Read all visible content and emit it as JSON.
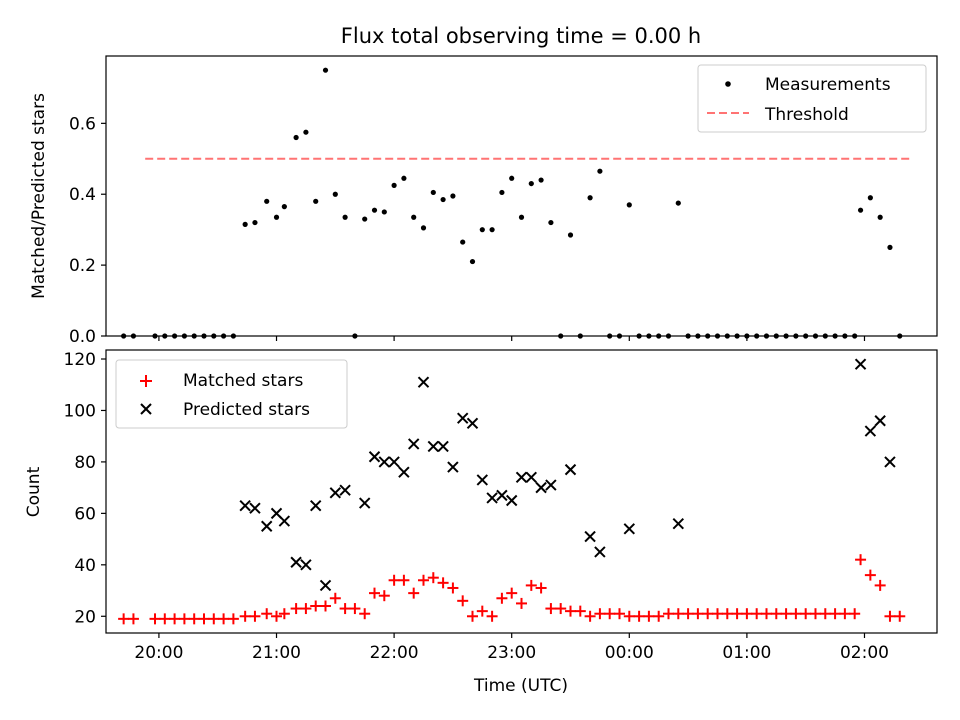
{
  "figure_title": "Flux total observing time = 0.00 h",
  "chart_data": [
    {
      "type": "scatter",
      "title": "Flux total observing time = 0.00 h",
      "ylabel": "Matched/Predicted stars",
      "xlabel": "",
      "xlim": [
        "19:33",
        "02:37"
      ],
      "ylim": [
        0,
        0.79
      ],
      "x_ticks": [
        "20:00",
        "21:00",
        "22:00",
        "23:00",
        "00:00",
        "01:00",
        "02:00"
      ],
      "y_ticks": [
        "0.0",
        "0.2",
        "0.4",
        "0.6"
      ],
      "grid": false,
      "legend_position": "top-right",
      "series": [
        {
          "name": "Measurements",
          "marker": "dot",
          "color": "#000000",
          "points": [
            [
              "19:42",
              0
            ],
            [
              "19:47",
              0
            ],
            [
              "19:58",
              0
            ],
            [
              "20:03",
              0
            ],
            [
              "20:08",
              0
            ],
            [
              "20:13",
              0
            ],
            [
              "20:18",
              0
            ],
            [
              "20:23",
              0
            ],
            [
              "20:28",
              0
            ],
            [
              "20:33",
              0
            ],
            [
              "20:38",
              0
            ],
            [
              "20:44",
              0.315
            ],
            [
              "20:49",
              0.32
            ],
            [
              "20:55",
              0.38
            ],
            [
              "21:00",
              0.335
            ],
            [
              "21:04",
              0.365
            ],
            [
              "21:10",
              0.56
            ],
            [
              "21:15",
              0.575
            ],
            [
              "21:20",
              0.38
            ],
            [
              "21:25",
              0.75
            ],
            [
              "21:30",
              0.4
            ],
            [
              "21:35",
              0.335
            ],
            [
              "21:40",
              0
            ],
            [
              "21:45",
              0.33
            ],
            [
              "21:50",
              0.355
            ],
            [
              "21:55",
              0.35
            ],
            [
              "22:00",
              0.425
            ],
            [
              "22:05",
              0.445
            ],
            [
              "22:10",
              0.335
            ],
            [
              "22:15",
              0.305
            ],
            [
              "22:20",
              0.405
            ],
            [
              "22:25",
              0.385
            ],
            [
              "22:30",
              0.395
            ],
            [
              "22:35",
              0.265
            ],
            [
              "22:40",
              0.21
            ],
            [
              "22:45",
              0.3
            ],
            [
              "22:50",
              0.3
            ],
            [
              "22:55",
              0.405
            ],
            [
              "23:00",
              0.445
            ],
            [
              "23:05",
              0.335
            ],
            [
              "23:10",
              0.43
            ],
            [
              "23:15",
              0.44
            ],
            [
              "23:20",
              0.32
            ],
            [
              "23:25",
              0
            ],
            [
              "23:30",
              0.285
            ],
            [
              "23:35",
              0
            ],
            [
              "23:40",
              0.39
            ],
            [
              "23:45",
              0.465
            ],
            [
              "23:50",
              0
            ],
            [
              "23:55",
              0
            ],
            [
              "00:00",
              0.37
            ],
            [
              "00:05",
              0
            ],
            [
              "00:10",
              0
            ],
            [
              "00:15",
              0
            ],
            [
              "00:20",
              0
            ],
            [
              "00:25",
              0.375
            ],
            [
              "00:30",
              0
            ],
            [
              "00:35",
              0
            ],
            [
              "00:40",
              0
            ],
            [
              "00:45",
              0
            ],
            [
              "00:50",
              0
            ],
            [
              "00:55",
              0
            ],
            [
              "01:00",
              0
            ],
            [
              "01:05",
              0
            ],
            [
              "01:10",
              0
            ],
            [
              "01:15",
              0
            ],
            [
              "01:20",
              0
            ],
            [
              "01:25",
              0
            ],
            [
              "01:30",
              0
            ],
            [
              "01:35",
              0
            ],
            [
              "01:40",
              0
            ],
            [
              "01:45",
              0
            ],
            [
              "01:50",
              0
            ],
            [
              "01:55",
              0
            ],
            [
              "01:58",
              0.355
            ],
            [
              "02:03",
              0.39
            ],
            [
              "02:08",
              0.335
            ],
            [
              "02:13",
              0.25
            ],
            [
              "02:18",
              0
            ]
          ]
        },
        {
          "name": "Threshold",
          "line_style": "dashed",
          "color": "#ff7373",
          "points": [
            [
              "19:53",
              0.5
            ],
            [
              "02:23",
              0.5
            ]
          ]
        }
      ]
    },
    {
      "type": "scatter",
      "title": "",
      "ylabel": "Count",
      "xlabel": "Time (UTC)",
      "xlim": [
        "19:33",
        "02:37"
      ],
      "ylim": [
        13.5,
        123.5
      ],
      "x_ticks": [
        "20:00",
        "21:00",
        "22:00",
        "23:00",
        "00:00",
        "01:00",
        "02:00"
      ],
      "y_ticks": [
        "20",
        "40",
        "60",
        "80",
        "100",
        "120"
      ],
      "grid": false,
      "legend_position": "top-left",
      "series": [
        {
          "name": "Matched stars",
          "marker": "plus",
          "color": "#ff0000",
          "points": [
            [
              "19:42",
              19
            ],
            [
              "19:47",
              19
            ],
            [
              "19:58",
              19
            ],
            [
              "20:03",
              19
            ],
            [
              "20:08",
              19
            ],
            [
              "20:13",
              19
            ],
            [
              "20:18",
              19
            ],
            [
              "20:23",
              19
            ],
            [
              "20:28",
              19
            ],
            [
              "20:33",
              19
            ],
            [
              "20:38",
              19
            ],
            [
              "20:44",
              20
            ],
            [
              "20:49",
              20
            ],
            [
              "20:55",
              21
            ],
            [
              "21:00",
              20
            ],
            [
              "21:04",
              21
            ],
            [
              "21:10",
              23
            ],
            [
              "21:15",
              23
            ],
            [
              "21:20",
              24
            ],
            [
              "21:25",
              24
            ],
            [
              "21:30",
              27
            ],
            [
              "21:35",
              23
            ],
            [
              "21:40",
              23
            ],
            [
              "21:45",
              21
            ],
            [
              "21:50",
              29
            ],
            [
              "21:55",
              28
            ],
            [
              "22:00",
              34
            ],
            [
              "22:05",
              34
            ],
            [
              "22:10",
              29
            ],
            [
              "22:15",
              34
            ],
            [
              "22:20",
              35
            ],
            [
              "22:25",
              33
            ],
            [
              "22:30",
              31
            ],
            [
              "22:35",
              26
            ],
            [
              "22:40",
              20
            ],
            [
              "22:45",
              22
            ],
            [
              "22:50",
              20
            ],
            [
              "22:55",
              27
            ],
            [
              "23:00",
              29
            ],
            [
              "23:05",
              25
            ],
            [
              "23:10",
              32
            ],
            [
              "23:15",
              31
            ],
            [
              "23:20",
              23
            ],
            [
              "23:25",
              23
            ],
            [
              "23:30",
              22
            ],
            [
              "23:35",
              22
            ],
            [
              "23:40",
              20
            ],
            [
              "23:45",
              21
            ],
            [
              "23:50",
              21
            ],
            [
              "23:55",
              21
            ],
            [
              "00:00",
              20
            ],
            [
              "00:05",
              20
            ],
            [
              "00:10",
              20
            ],
            [
              "00:15",
              20
            ],
            [
              "00:20",
              21
            ],
            [
              "00:25",
              21
            ],
            [
              "00:30",
              21
            ],
            [
              "00:35",
              21
            ],
            [
              "00:40",
              21
            ],
            [
              "00:45",
              21
            ],
            [
              "00:50",
              21
            ],
            [
              "00:55",
              21
            ],
            [
              "01:00",
              21
            ],
            [
              "01:05",
              21
            ],
            [
              "01:10",
              21
            ],
            [
              "01:15",
              21
            ],
            [
              "01:20",
              21
            ],
            [
              "01:25",
              21
            ],
            [
              "01:30",
              21
            ],
            [
              "01:35",
              21
            ],
            [
              "01:40",
              21
            ],
            [
              "01:45",
              21
            ],
            [
              "01:50",
              21
            ],
            [
              "01:55",
              21
            ],
            [
              "01:58",
              42
            ],
            [
              "02:03",
              36
            ],
            [
              "02:08",
              32
            ],
            [
              "02:13",
              20
            ],
            [
              "02:18",
              20
            ]
          ]
        },
        {
          "name": "Predicted stars",
          "marker": "x",
          "color": "#000000",
          "points": [
            [
              "20:44",
              63
            ],
            [
              "20:49",
              62
            ],
            [
              "20:55",
              55
            ],
            [
              "21:00",
              60
            ],
            [
              "21:04",
              57
            ],
            [
              "21:10",
              41
            ],
            [
              "21:15",
              40
            ],
            [
              "21:20",
              63
            ],
            [
              "21:25",
              32
            ],
            [
              "21:30",
              68
            ],
            [
              "21:35",
              69
            ],
            [
              "21:45",
              64
            ],
            [
              "21:50",
              82
            ],
            [
              "21:55",
              80
            ],
            [
              "22:00",
              80
            ],
            [
              "22:05",
              76
            ],
            [
              "22:10",
              87
            ],
            [
              "22:15",
              111
            ],
            [
              "22:20",
              86
            ],
            [
              "22:25",
              86
            ],
            [
              "22:30",
              78
            ],
            [
              "22:35",
              97
            ],
            [
              "22:40",
              95
            ],
            [
              "22:45",
              73
            ],
            [
              "22:50",
              66
            ],
            [
              "22:55",
              67
            ],
            [
              "23:00",
              65
            ],
            [
              "23:05",
              74
            ],
            [
              "23:10",
              74
            ],
            [
              "23:15",
              70
            ],
            [
              "23:20",
              71
            ],
            [
              "23:30",
              77
            ],
            [
              "23:40",
              51
            ],
            [
              "23:45",
              45
            ],
            [
              "00:00",
              54
            ],
            [
              "00:25",
              56
            ],
            [
              "01:58",
              118
            ],
            [
              "02:03",
              92
            ],
            [
              "02:08",
              96
            ],
            [
              "02:13",
              80
            ]
          ]
        }
      ]
    }
  ],
  "colors": {
    "accent": "#ff0000",
    "threshold": "#ff7373",
    "marker": "#000000"
  }
}
